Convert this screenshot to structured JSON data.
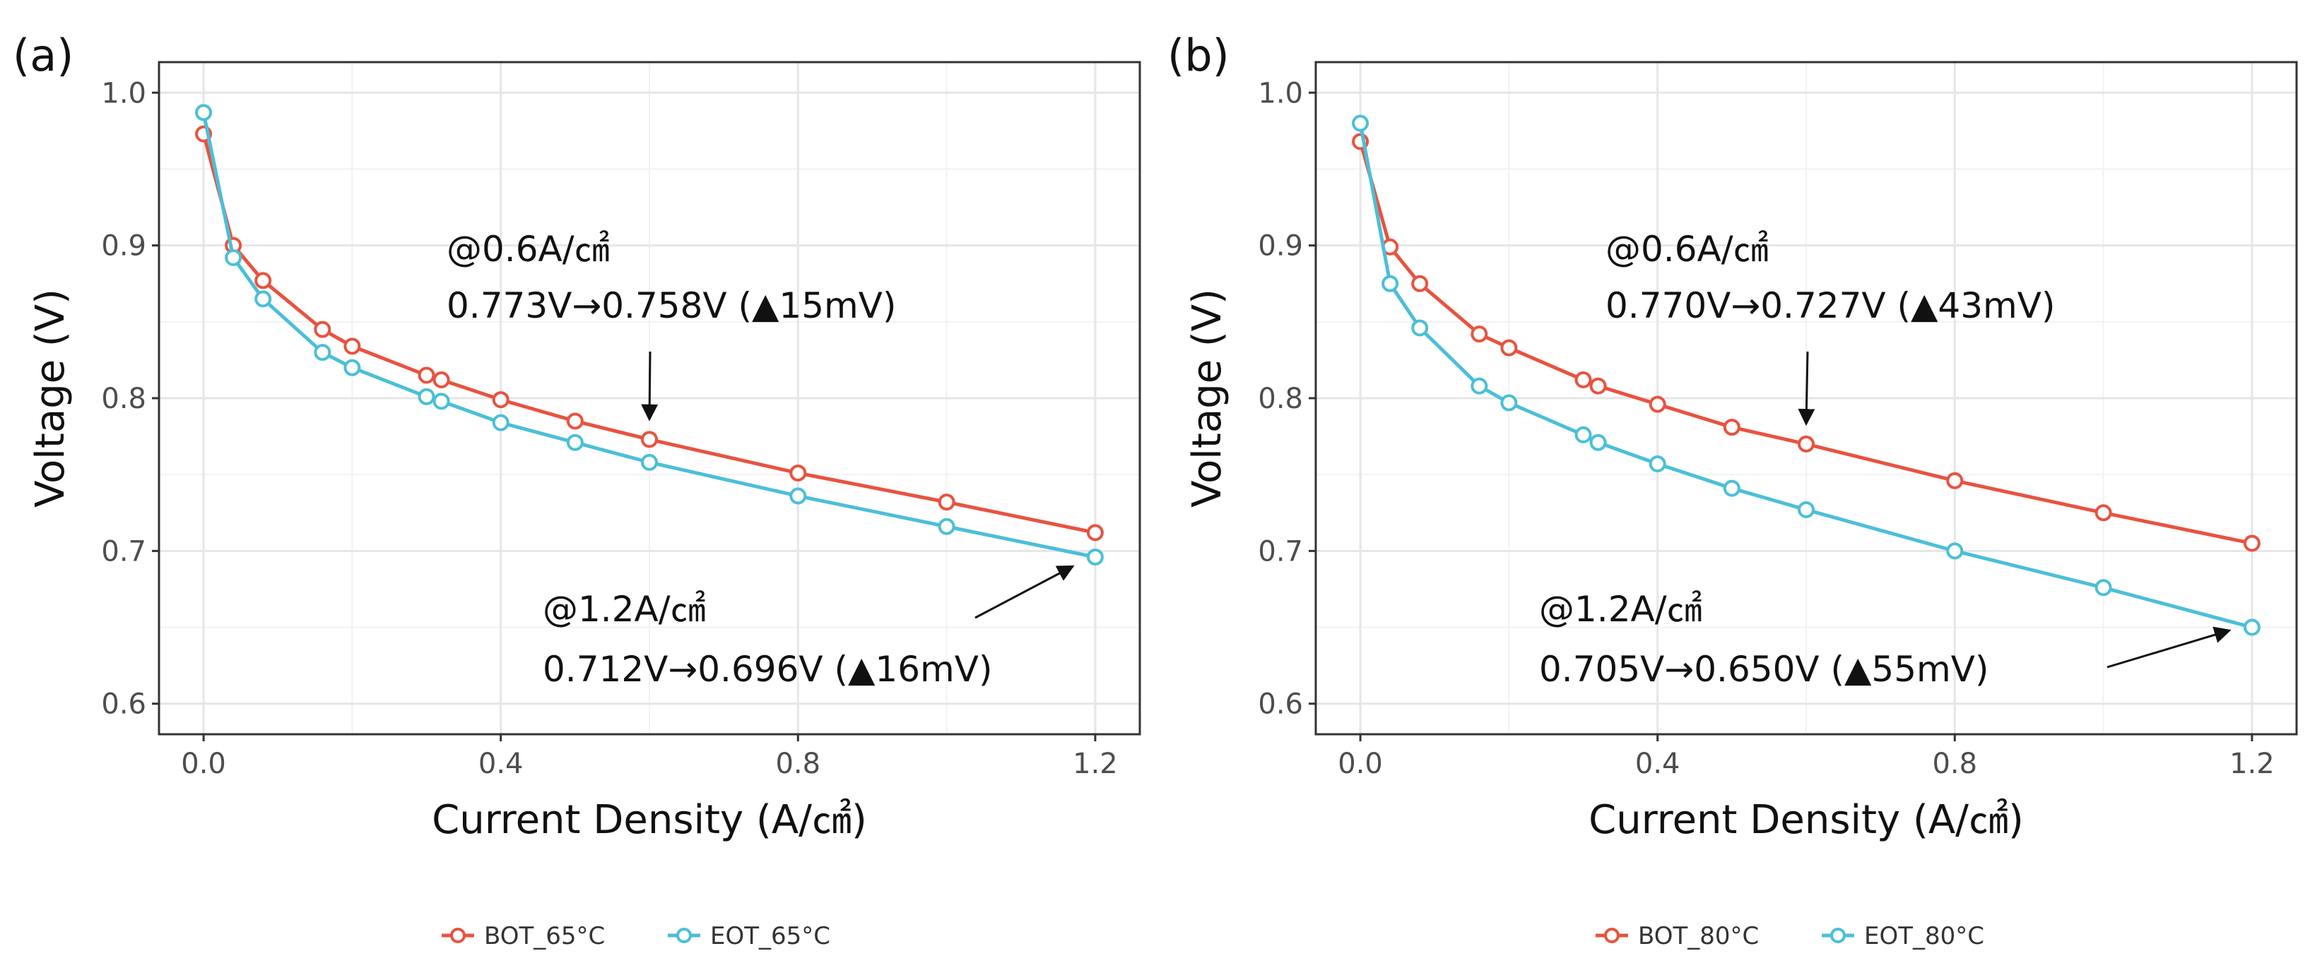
{
  "chart_data": [
    {
      "type": "line",
      "panel_label": "(a)",
      "xlabel": "Current Density (A/㎠)",
      "ylabel": "Voltage (V)",
      "xlim": [
        -0.06,
        1.26
      ],
      "ylim": [
        0.58,
        1.02
      ],
      "x_ticks": [
        0.0,
        0.4,
        0.8,
        1.2
      ],
      "x_tick_labels": [
        "0.0",
        "0.4",
        "0.8",
        "1.2"
      ],
      "y_ticks": [
        0.6,
        0.7,
        0.8,
        0.9,
        1.0
      ],
      "y_tick_labels": [
        "0.6",
        "0.7",
        "0.8",
        "0.9",
        "1.0"
      ],
      "x": [
        0.0,
        0.04,
        0.08,
        0.16,
        0.2,
        0.3,
        0.32,
        0.4,
        0.5,
        0.6,
        0.8,
        1.0,
        1.2
      ],
      "series": [
        {
          "name": "BOT_65°C",
          "color": "#e8533f",
          "values": [
            0.973,
            0.9,
            0.877,
            0.845,
            0.834,
            0.815,
            0.812,
            0.799,
            0.785,
            0.773,
            0.751,
            0.732,
            0.712
          ]
        },
        {
          "name": "EOT_65°C",
          "color": "#4bbfd8",
          "values": [
            0.987,
            0.892,
            0.865,
            0.83,
            0.82,
            0.801,
            0.798,
            0.784,
            0.771,
            0.758,
            0.736,
            0.716,
            0.696
          ]
        }
      ],
      "annotations": [
        {
          "line1": "@0.6A/㎠",
          "line2": "0.773V→0.758V (▲15mV)",
          "arrow_to": [
            0.6,
            0.786
          ]
        },
        {
          "line1": "@1.2A/㎠",
          "line2": "0.712V→0.696V (▲16mV)",
          "arrow_to": [
            1.17,
            0.69
          ]
        }
      ],
      "legend_position": "bottom"
    },
    {
      "type": "line",
      "panel_label": "(b)",
      "xlabel": "Current Density (A/㎠)",
      "ylabel": "Voltage (V)",
      "xlim": [
        -0.06,
        1.26
      ],
      "ylim": [
        0.58,
        1.02
      ],
      "x_ticks": [
        0.0,
        0.4,
        0.8,
        1.2
      ],
      "x_tick_labels": [
        "0.0",
        "0.4",
        "0.8",
        "1.2"
      ],
      "y_ticks": [
        0.6,
        0.7,
        0.8,
        0.9,
        1.0
      ],
      "y_tick_labels": [
        "0.6",
        "0.7",
        "0.8",
        "0.9",
        "1.0"
      ],
      "x": [
        0.0,
        0.04,
        0.08,
        0.16,
        0.2,
        0.3,
        0.32,
        0.4,
        0.5,
        0.6,
        0.8,
        1.0,
        1.2
      ],
      "series": [
        {
          "name": "BOT_80°C",
          "color": "#e8533f",
          "values": [
            0.968,
            0.899,
            0.875,
            0.842,
            0.833,
            0.812,
            0.808,
            0.796,
            0.781,
            0.77,
            0.746,
            0.725,
            0.705
          ]
        },
        {
          "name": "EOT_80°C",
          "color": "#4bbfd8",
          "values": [
            0.98,
            0.875,
            0.846,
            0.808,
            0.797,
            0.776,
            0.771,
            0.757,
            0.741,
            0.727,
            0.7,
            0.676,
            0.65
          ]
        }
      ],
      "annotations": [
        {
          "line1": "@0.6A/㎠",
          "line2": "0.770V→0.727V (▲43mV)",
          "arrow_to": [
            0.6,
            0.783
          ]
        },
        {
          "line1": "@1.2A/㎠",
          "line2": "0.705V→0.650V (▲55mV)",
          "arrow_to": [
            1.17,
            0.648
          ]
        }
      ],
      "legend_position": "bottom"
    }
  ]
}
